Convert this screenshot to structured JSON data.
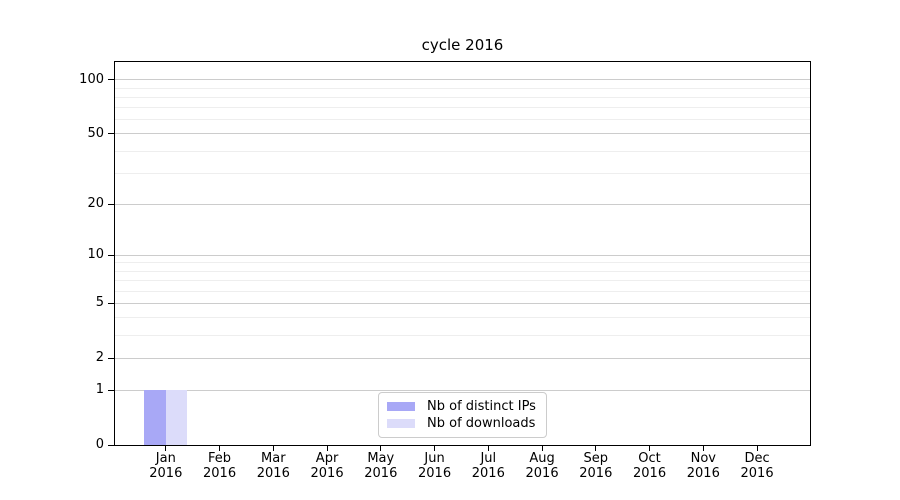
{
  "chart_data": {
    "type": "bar",
    "title": "cycle 2016",
    "categories": [
      "Jan",
      "Feb",
      "Mar",
      "Apr",
      "May",
      "Jun",
      "Jul",
      "Aug",
      "Sep",
      "Oct",
      "Nov",
      "Dec"
    ],
    "x_sublabel": "2016",
    "series": [
      {
        "name": "Nb of distinct IPs",
        "color": "#a8a8f6",
        "values": [
          1,
          0,
          0,
          0,
          0,
          0,
          0,
          0,
          0,
          0,
          0,
          0
        ]
      },
      {
        "name": "Nb of downloads",
        "color": "#dcdcfa",
        "values": [
          1,
          0,
          0,
          0,
          0,
          0,
          0,
          0,
          0,
          0,
          0,
          0
        ]
      }
    ],
    "xlabel": "",
    "ylabel": "",
    "yscale": "log10(v+1)",
    "ylim": [
      0,
      112
    ],
    "y_major_ticks": [
      0,
      1,
      2,
      5,
      10,
      20,
      50,
      100
    ],
    "y_minor_ticks": [
      3,
      4,
      6,
      7,
      8,
      9,
      30,
      40,
      60,
      70,
      80,
      90
    ],
    "grid": "horizontal",
    "legend_position": "lower center",
    "colors": {
      "grid_major": "#cccccc",
      "grid_minor": "#eeeeee",
      "axis": "#000000",
      "background": "#ffffff"
    }
  }
}
